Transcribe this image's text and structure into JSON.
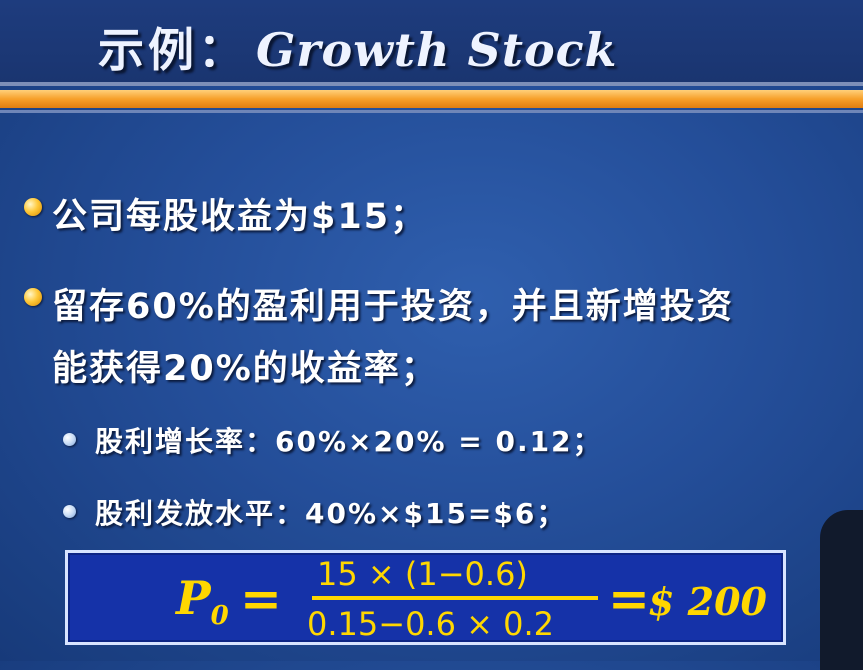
{
  "title": {
    "cn": "示例：",
    "en": "Growth Stock"
  },
  "bullets": [
    {
      "text": "公司每股收益为$15；"
    },
    {
      "text": "留存60%的盈利用于投资，并且新增投资"
    },
    {
      "text": "能获得20%的收益率；"
    }
  ],
  "sub_bullets": [
    {
      "text": "股利增长率：60%×20% = 0.12；"
    },
    {
      "text": "股利发放水平：40%×$15=$6；"
    }
  ],
  "formula": {
    "lhs": "P",
    "lhs_sub": "0",
    "eq": "=",
    "numerator": "15 × (1−0.6)",
    "denominator": "0.15−0.6 × 0.2",
    "eq2": "=",
    "result": "$ 200"
  },
  "colors": {
    "accent": "#ffd700",
    "background": "#244e99",
    "stripe": "#f7a02a",
    "formula_box": "#1532a8"
  }
}
